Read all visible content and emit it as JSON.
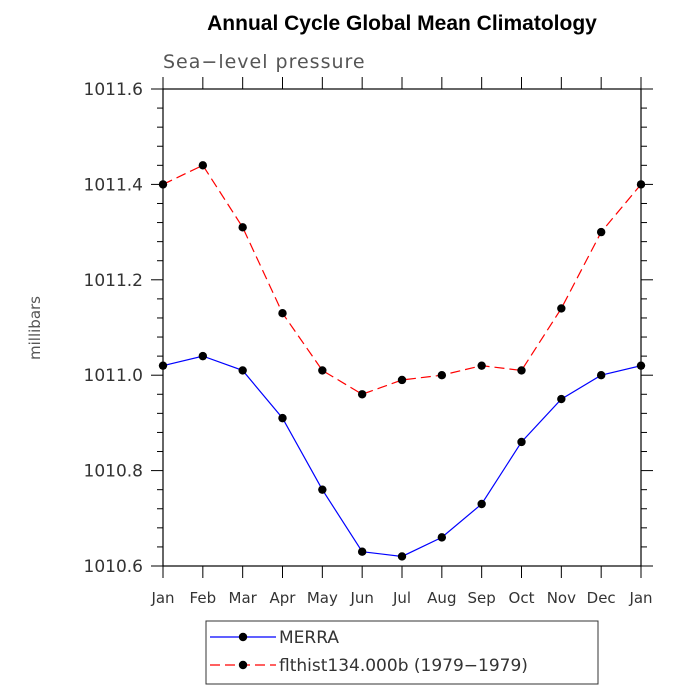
{
  "chart_data": {
    "type": "line",
    "title": "Annual Cycle Global Mean Climatology",
    "subtitle": "Sea−level pressure",
    "xlabel": "",
    "ylabel": "millibars",
    "categories": [
      "Jan",
      "Feb",
      "Mar",
      "Apr",
      "May",
      "Jun",
      "Jul",
      "Aug",
      "Sep",
      "Oct",
      "Nov",
      "Dec",
      "Jan"
    ],
    "ylim": [
      1010.6,
      1011.6
    ],
    "yticks": [
      "1010.6",
      "1010.8",
      "1011.0",
      "1011.2",
      "1011.4",
      "1011.6"
    ],
    "series": [
      {
        "name": "MERRA",
        "color": "#0000ff",
        "line_style": "solid",
        "marker": "filled-circle",
        "values": [
          1011.02,
          1011.04,
          1011.01,
          1010.91,
          1010.76,
          1010.63,
          1010.62,
          1010.66,
          1010.73,
          1010.86,
          1010.95,
          1011.0,
          1011.02
        ]
      },
      {
        "name": "flthist134.000b (1979−1979)",
        "color": "#ff0000",
        "line_style": "dashed",
        "marker": "filled-circle",
        "values": [
          1011.4,
          1011.44,
          1011.31,
          1011.13,
          1011.01,
          1010.96,
          1010.99,
          1011.0,
          1011.02,
          1011.01,
          1011.14,
          1011.3,
          1011.4
        ]
      }
    ],
    "grid": false,
    "legend_position": "bottom"
  }
}
